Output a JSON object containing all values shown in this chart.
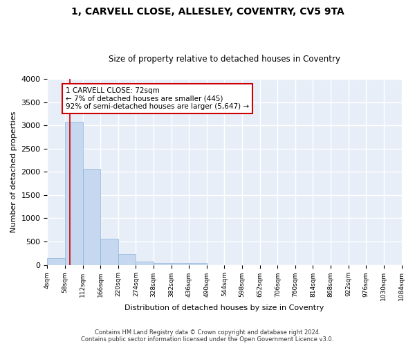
{
  "title": "1, CARVELL CLOSE, ALLESLEY, COVENTRY, CV5 9TA",
  "subtitle": "Size of property relative to detached houses in Coventry",
  "xlabel": "Distribution of detached houses by size in Coventry",
  "ylabel": "Number of detached properties",
  "bar_color": "#c5d8f0",
  "bar_edge_color": "#8ab4d8",
  "background_color": "#e8eef8",
  "grid_color": "#ffffff",
  "annotation_line_color": "#cc0000",
  "annotation_box_color": "#cc0000",
  "annotation_line1": "1 CARVELL CLOSE: 72sqm",
  "annotation_line2": "← 7% of detached houses are smaller (445)",
  "annotation_line3": "92% of semi-detached houses are larger (5,647) →",
  "property_size": 72,
  "bins": [
    4,
    58,
    112,
    166,
    220,
    274,
    328,
    382,
    436,
    490,
    544,
    598,
    652,
    706,
    760,
    814,
    868,
    922,
    976,
    1030,
    1084
  ],
  "bin_labels": [
    "4sqm",
    "58sqm",
    "112sqm",
    "166sqm",
    "220sqm",
    "274sqm",
    "328sqm",
    "382sqm",
    "436sqm",
    "490sqm",
    "544sqm",
    "598sqm",
    "652sqm",
    "706sqm",
    "760sqm",
    "814sqm",
    "868sqm",
    "922sqm",
    "976sqm",
    "1030sqm",
    "1084sqm"
  ],
  "counts": [
    145,
    3070,
    2070,
    560,
    235,
    75,
    45,
    40,
    35,
    0,
    0,
    0,
    0,
    0,
    0,
    0,
    0,
    0,
    0,
    0
  ],
  "ylim": [
    0,
    4000
  ],
  "yticks": [
    0,
    500,
    1000,
    1500,
    2000,
    2500,
    3000,
    3500,
    4000
  ],
  "footer_line1": "Contains HM Land Registry data © Crown copyright and database right 2024.",
  "footer_line2": "Contains public sector information licensed under the Open Government Licence v3.0.",
  "fig_bg": "#ffffff"
}
